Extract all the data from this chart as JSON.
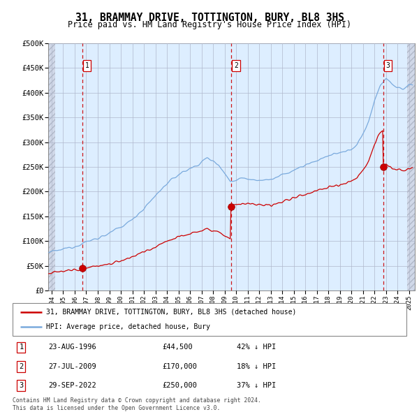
{
  "title": "31, BRAMMAY DRIVE, TOTTINGTON, BURY, BL8 3HS",
  "subtitle": "Price paid vs. HM Land Registry's House Price Index (HPI)",
  "title_fontsize": 10.5,
  "subtitle_fontsize": 8.5,
  "ylabel_ticks": [
    "£0",
    "£50K",
    "£100K",
    "£150K",
    "£200K",
    "£250K",
    "£300K",
    "£350K",
    "£400K",
    "£450K",
    "£500K"
  ],
  "ytick_values": [
    0,
    50000,
    100000,
    150000,
    200000,
    250000,
    300000,
    350000,
    400000,
    450000,
    500000
  ],
  "ylim": [
    0,
    500000
  ],
  "xlim_start": 1993.7,
  "xlim_end": 2025.5,
  "sale_color": "#cc0000",
  "hpi_color": "#7aaadd",
  "legend_sale_label": "31, BRAMMAY DRIVE, TOTTINGTON, BURY, BL8 3HS (detached house)",
  "legend_hpi_label": "HPI: Average price, detached house, Bury",
  "transactions": [
    {
      "date_year": 1996.64,
      "price": 44500,
      "label": "1"
    },
    {
      "date_year": 2009.57,
      "price": 170000,
      "label": "2"
    },
    {
      "date_year": 2022.75,
      "price": 250000,
      "label": "3"
    }
  ],
  "table_rows": [
    {
      "num": "1",
      "date": "23-AUG-1996",
      "price": "£44,500",
      "note": "42% ↓ HPI"
    },
    {
      "num": "2",
      "date": "27-JUL-2009",
      "price": "£170,000",
      "note": "18% ↓ HPI"
    },
    {
      "num": "3",
      "date": "29-SEP-2022",
      "price": "£250,000",
      "note": "37% ↓ HPI"
    }
  ],
  "footnote": "Contains HM Land Registry data © Crown copyright and database right 2024.\nThis data is licensed under the Open Government Licence v3.0.",
  "bg_plot_color": "#ddeeff",
  "grid_color": "#b0b8cc",
  "vline_color": "#cc0000",
  "marker_size": 7,
  "hatch_left_end": 1994.3,
  "hatch_right_start": 2024.85
}
